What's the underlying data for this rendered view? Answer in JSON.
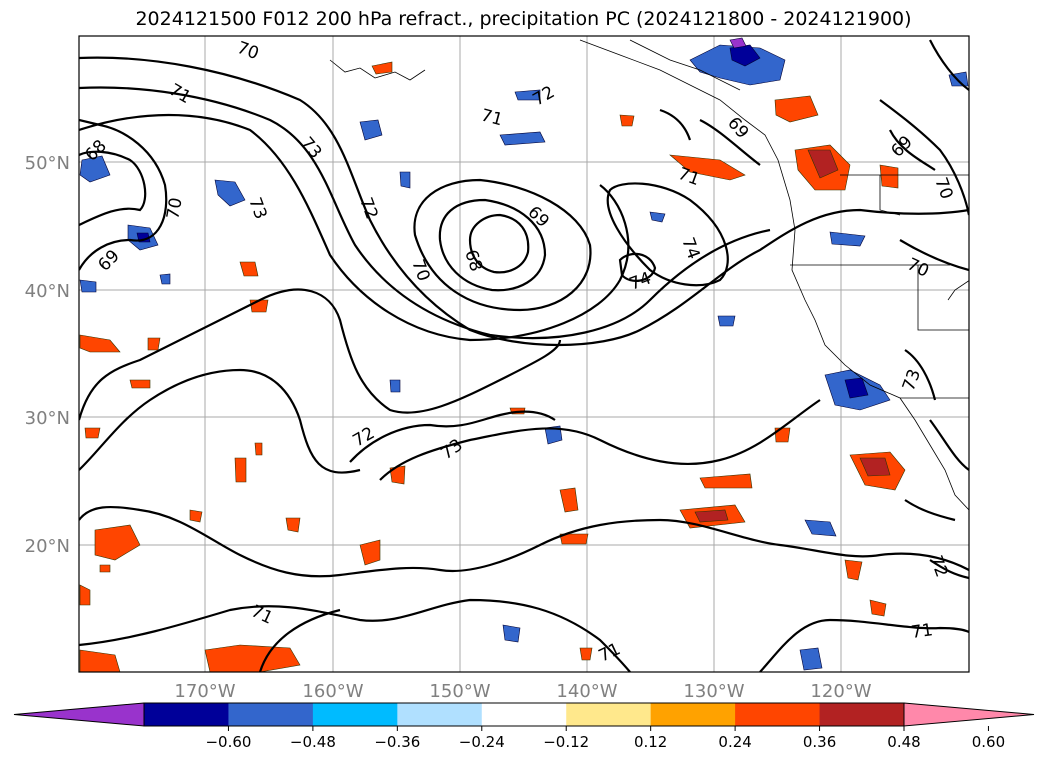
{
  "title": "2024121500 F012 200 hPa refract., precipitation PC (2024121800 - 2024121900)",
  "map": {
    "lat_labels": [
      "50°N",
      "40°N",
      "30°N",
      "20°N"
    ],
    "lon_labels": [
      "170°W",
      "160°W",
      "150°W",
      "140°W",
      "130°W",
      "120°W"
    ],
    "contour_labels": [
      "70",
      "71",
      "73",
      "68",
      "69",
      "70",
      "73",
      "71",
      "72",
      "72",
      "69",
      "68",
      "70",
      "74",
      "74",
      "71",
      "69",
      "69",
      "70",
      "70",
      "72",
      "73",
      "73",
      "71",
      "71",
      "71",
      "72"
    ]
  },
  "colorbar": {
    "colors": [
      "#9933cc",
      "#000099",
      "#3366cc",
      "#00bbff",
      "#b0e0ff",
      "#ffffff",
      "#ffe88c",
      "#ffa200",
      "#ff4500",
      "#b22222",
      "#ff88aa"
    ],
    "labels": [
      "−0.60",
      "−0.48",
      "−0.36",
      "−0.24",
      "−0.12",
      "0.12",
      "0.24",
      "0.36",
      "0.48",
      "0.60"
    ]
  }
}
